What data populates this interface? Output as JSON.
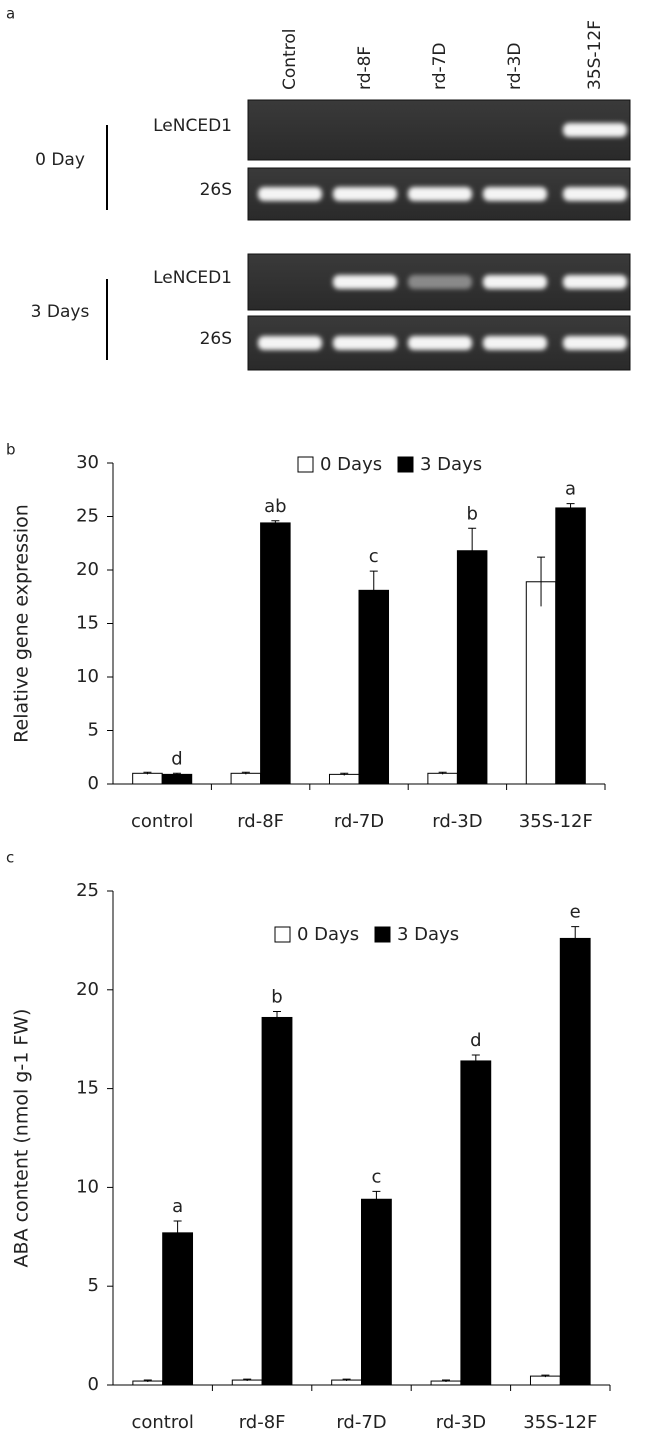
{
  "gel": {
    "label": "a",
    "lanes": [
      "Control",
      "rd-8F",
      "rd-7D",
      "rd-3D",
      "35S-12F"
    ],
    "groups": [
      {
        "label": "0 Day",
        "rows": [
          "LeNCED1",
          "26S"
        ]
      },
      {
        "label": "3 Days",
        "rows": [
          "LeNCED1",
          "26S"
        ]
      }
    ]
  },
  "chart_data": [
    {
      "type": "bar",
      "label": "b",
      "ylabel": "Relative gene expression",
      "categories": [
        "control",
        "rd-8F",
        "rd-7D",
        "rd-3D",
        "35S-12F"
      ],
      "series": [
        {
          "name": "0 Days",
          "color": "#ffffff",
          "values": [
            1.0,
            1.0,
            0.9,
            1.0,
            18.9
          ],
          "errors": [
            0.1,
            0.1,
            0.1,
            0.1,
            2.3
          ]
        },
        {
          "name": "3 Days",
          "color": "#000000",
          "values": [
            0.9,
            24.4,
            18.1,
            21.8,
            25.8
          ],
          "errors": [
            0.1,
            0.2,
            1.8,
            2.1,
            0.4
          ],
          "letters": [
            "d",
            "ab",
            "c",
            "b",
            "a"
          ]
        }
      ],
      "ylim": [
        0,
        30
      ],
      "yticks": [
        0,
        5,
        10,
        15,
        20,
        25,
        30
      ]
    },
    {
      "type": "bar",
      "label": "c",
      "ylabel": "ABA content  (nmol g-1 FW)",
      "categories": [
        "control",
        "rd-8F",
        "rd-7D",
        "rd-3D",
        "35S-12F"
      ],
      "series": [
        {
          "name": "0 Days",
          "color": "#ffffff",
          "values": [
            0.2,
            0.25,
            0.25,
            0.2,
            0.45
          ],
          "errors": [
            0.05,
            0.05,
            0.05,
            0.05,
            0.05
          ]
        },
        {
          "name": "3 Days",
          "color": "#000000",
          "values": [
            7.7,
            18.6,
            9.4,
            16.4,
            22.6
          ],
          "errors": [
            0.6,
            0.3,
            0.4,
            0.3,
            0.6
          ],
          "letters": [
            "a",
            "b",
            "c",
            "d",
            "e"
          ]
        }
      ],
      "ylim": [
        0,
        25
      ],
      "yticks": [
        0,
        5,
        10,
        15,
        20,
        25
      ]
    }
  ]
}
